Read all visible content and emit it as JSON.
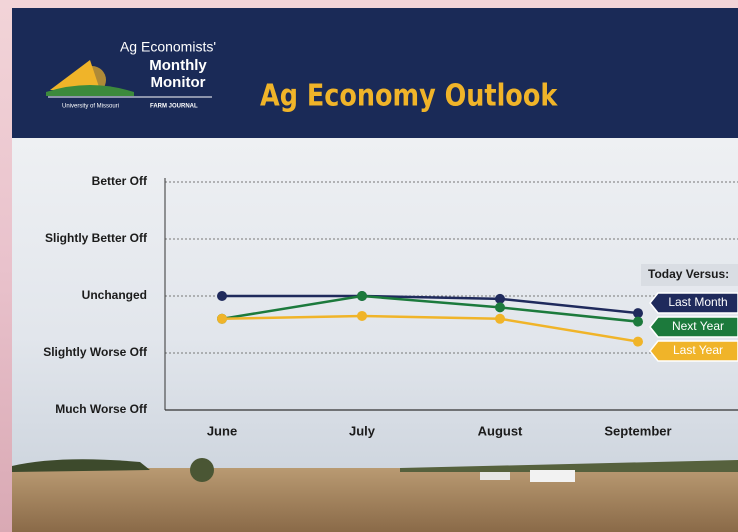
{
  "header": {
    "logo_line1": "Ag Economists'",
    "logo_line2": "Monthly",
    "logo_line3": "Monitor",
    "partner1": "University of Missouri",
    "partner2": "FARM JOURNAL"
  },
  "chart_data": {
    "type": "line",
    "title": "Ag Economy Outlook",
    "categories": [
      "June",
      "July",
      "August",
      "September"
    ],
    "series": [
      {
        "name": "Last Month",
        "color": "#1f2a5c",
        "values": [
          0,
          0,
          -0.05,
          -0.3
        ]
      },
      {
        "name": "Next Year",
        "color": "#1c7a3c",
        "values": [
          -0.4,
          0,
          -0.2,
          -0.45
        ]
      },
      {
        "name": "Last Year",
        "color": "#f0b429",
        "values": [
          -0.4,
          -0.35,
          -0.4,
          -0.8
        ]
      }
    ],
    "ylim": [
      -2,
      2
    ],
    "yticks": [
      {
        "value": -2,
        "label": "Much Worse Off"
      },
      {
        "value": -1,
        "label": "Slightly Worse Off"
      },
      {
        "value": 0,
        "label": "Unchanged"
      },
      {
        "value": 1,
        "label": "Slightly Better Off"
      },
      {
        "value": 2,
        "label": "Better Off"
      }
    ],
    "grid": true,
    "legend_title": "Today Versus:",
    "legend_position": "right"
  }
}
